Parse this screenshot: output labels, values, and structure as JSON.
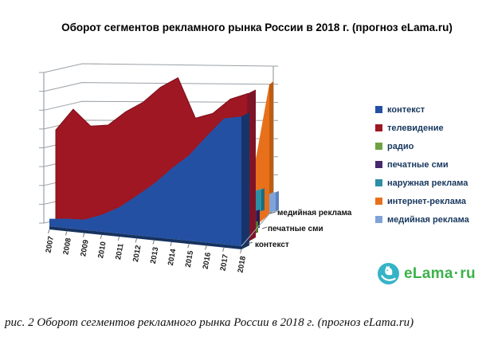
{
  "header": {
    "title": "Оборот сегментов рекламного рынка России в 2018 г. (прогноз eLama.ru)"
  },
  "caption": {
    "text": "рис. 2 Оборот сегментов рекламного рынка России в 2018 г. (прогноз eLama.ru)"
  },
  "logo": {
    "brand": "eLama",
    "separator": "·",
    "tld": "ru",
    "circle_color": "#35b3c7",
    "text_color": "#3cb24b"
  },
  "legend": {
    "position": "right"
  },
  "depth_axis": {
    "labels": [
      "контекст",
      "печатные сми",
      "медийная реклама"
    ]
  },
  "chart_data": {
    "type": "area",
    "projection": "3d",
    "title": "Оборот сегментов рекламного рынка России в 2018 г. (прогноз eLama.ru)",
    "categories": [
      "2007",
      "2008",
      "2009",
      "2010",
      "2011",
      "2012",
      "2013",
      "2014",
      "2015",
      "2016",
      "2017",
      "2018"
    ],
    "xlabel": "",
    "ylabel": "",
    "value_axis": {
      "labels_visible": false,
      "tick_count": 9,
      "units": "unlabeled (relative)",
      "estimated_range": [
        0,
        160
      ]
    },
    "grid": true,
    "legend_position": "right",
    "series": [
      {
        "name": "контекст",
        "color": "#2450a4",
        "side_color": "#16346b",
        "values": [
          8,
          10,
          11,
          18,
          28,
          42,
          57,
          75,
          91,
          113,
          134,
          138
        ]
      },
      {
        "name": "телевидение",
        "color": "#9e1722",
        "side_color": "#7e1428",
        "values": [
          98,
          122,
          106,
          109,
          125,
          137,
          155,
          167,
          126,
          133,
          150,
          158
        ]
      },
      {
        "name": "радио",
        "color": "#6fa243",
        "side_color": "#4e7a2b",
        "top_color": "#86b55a",
        "visible_2018_value": 12
      },
      {
        "name": "печатные сми",
        "color": "#46286f",
        "side_color": "#2f1b4e",
        "top_color": "#5c3c8a",
        "visible_2018_value": 19
      },
      {
        "name": "наружная реклама",
        "color": "#2d8fa3",
        "side_color": "#1f6b7d",
        "top_color": "#45a8bc",
        "visible_2018_value": 23
      },
      {
        "name": "интернет-реклама",
        "color": "#e8701a",
        "side_color": "#c05c0e",
        "top_color": "#f2923f",
        "visible_2018_value": 137
      },
      {
        "name": "медийная реклама",
        "color": "#7fa3d9",
        "side_color": "#5b82bd",
        "top_color": "#9ab9e6",
        "visible_2018_value": 20
      }
    ]
  }
}
